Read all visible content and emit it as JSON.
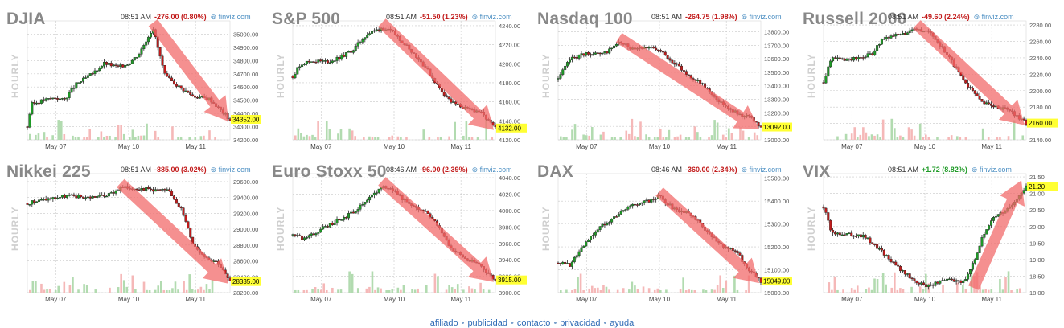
{
  "panels_text": {
    "hourly_label": "HOURLY",
    "brand": "⊚ finviz.com"
  },
  "footer": {
    "links": [
      "afiliado",
      "publicidad",
      "contacto",
      "privacidad",
      "ayuda"
    ]
  },
  "colors": {
    "up": "#1f9a27",
    "down": "#c21b1b",
    "arrow": "#f26b6b",
    "price_tag": "#ffff33",
    "grid": "#c8c8c8",
    "vol_up": "#b2dbb0",
    "vol_down": "#f5b8b8",
    "change_positive": "#1f9a27",
    "change_negative": "#c21b1b",
    "footer_link": "#2f6bb5"
  },
  "chart_data": [
    {
      "type": "candlestick",
      "title": "DJIA",
      "time": "08:51 AM",
      "change": "-276.00 (0.80%)",
      "direction": "down",
      "x_ticks": [
        "May 07",
        "May 10",
        "May 11"
      ],
      "ylim": [
        34200,
        35100
      ],
      "y_ticks": [
        34200,
        34300,
        34400,
        34500,
        34600,
        34700,
        34800,
        34900,
        35000
      ],
      "last": 34352,
      "last_label": "34352.00",
      "trend": "down",
      "path": [
        [
          0,
          34300
        ],
        [
          2,
          34470
        ],
        [
          8,
          34500
        ],
        [
          14,
          34520
        ],
        [
          18,
          34500
        ],
        [
          24,
          34620
        ],
        [
          32,
          34700
        ],
        [
          38,
          34780
        ],
        [
          45,
          34750
        ],
        [
          50,
          34780
        ],
        [
          55,
          34850
        ],
        [
          62,
          35050
        ],
        [
          64,
          34920
        ],
        [
          68,
          34680
        ],
        [
          75,
          34600
        ],
        [
          82,
          34530
        ],
        [
          90,
          34510
        ],
        [
          100,
          34352
        ]
      ]
    },
    {
      "type": "candlestick",
      "title": "S&P 500",
      "time": "08:51 AM",
      "change": "-51.50 (1.23%)",
      "direction": "down",
      "x_ticks": [
        "May 07",
        "May 10",
        "May 11"
      ],
      "ylim": [
        4120,
        4245
      ],
      "y_ticks": [
        4120,
        4140,
        4160,
        4180,
        4200,
        4220,
        4240
      ],
      "last": 4132,
      "last_label": "4132.00",
      "trend": "down",
      "path": [
        [
          0,
          4187
        ],
        [
          4,
          4200
        ],
        [
          10,
          4203
        ],
        [
          18,
          4202
        ],
        [
          24,
          4207
        ],
        [
          30,
          4215
        ],
        [
          36,
          4230
        ],
        [
          44,
          4238
        ],
        [
          50,
          4232
        ],
        [
          58,
          4215
        ],
        [
          66,
          4195
        ],
        [
          72,
          4175
        ],
        [
          78,
          4160
        ],
        [
          86,
          4152
        ],
        [
          92,
          4150
        ],
        [
          100,
          4132
        ]
      ]
    },
    {
      "type": "candlestick",
      "title": "Nasdaq 100",
      "time": "08:51 AM",
      "change": "-264.75 (1.98%)",
      "direction": "down",
      "x_ticks": [
        "May 07",
        "May 10",
        "May 11"
      ],
      "ylim": [
        13000,
        13880
      ],
      "y_ticks": [
        13000,
        13100,
        13200,
        13300,
        13400,
        13500,
        13600,
        13700,
        13800
      ],
      "last": 13092,
      "last_label": "13092.00",
      "trend": "down",
      "path": [
        [
          0,
          13450
        ],
        [
          6,
          13600
        ],
        [
          14,
          13640
        ],
        [
          22,
          13630
        ],
        [
          30,
          13720
        ],
        [
          36,
          13680
        ],
        [
          44,
          13690
        ],
        [
          52,
          13640
        ],
        [
          58,
          13560
        ],
        [
          64,
          13480
        ],
        [
          72,
          13400
        ],
        [
          80,
          13280
        ],
        [
          88,
          13200
        ],
        [
          94,
          13170
        ],
        [
          100,
          13092
        ]
      ]
    },
    {
      "type": "candlestick",
      "title": "Russell 2000",
      "time": "08:51 AM",
      "change": "-49.60 (2.24%)",
      "direction": "down",
      "x_ticks": [
        "May 07",
        "May 10",
        "May 11"
      ],
      "ylim": [
        2140,
        2285
      ],
      "y_ticks": [
        2140,
        2160,
        2180,
        2200,
        2220,
        2240,
        2260,
        2280
      ],
      "last": 2160,
      "last_label": "2160.00",
      "trend": "down",
      "path": [
        [
          0,
          2210
        ],
        [
          4,
          2240
        ],
        [
          10,
          2238
        ],
        [
          18,
          2240
        ],
        [
          24,
          2245
        ],
        [
          30,
          2265
        ],
        [
          38,
          2268
        ],
        [
          46,
          2275
        ],
        [
          54,
          2268
        ],
        [
          62,
          2240
        ],
        [
          70,
          2210
        ],
        [
          78,
          2185
        ],
        [
          86,
          2180
        ],
        [
          92,
          2176
        ],
        [
          100,
          2160
        ]
      ]
    },
    {
      "type": "candlestick",
      "title": "Nikkei 225",
      "time": "08:51 AM",
      "change": "-885.00 (3.02%)",
      "direction": "down",
      "x_ticks": [
        "May 07",
        "May 10",
        "May 11"
      ],
      "ylim": [
        28200,
        29700
      ],
      "y_ticks": [
        28200,
        28400,
        28600,
        28800,
        29000,
        29200,
        29400,
        29600
      ],
      "last": 28335,
      "last_label": "28335.00",
      "trend": "down",
      "path": [
        [
          0,
          29330
        ],
        [
          10,
          29380
        ],
        [
          20,
          29420
        ],
        [
          30,
          29400
        ],
        [
          40,
          29430
        ],
        [
          46,
          29520
        ],
        [
          54,
          29520
        ],
        [
          62,
          29500
        ],
        [
          70,
          29480
        ],
        [
          76,
          29250
        ],
        [
          82,
          28800
        ],
        [
          88,
          28650
        ],
        [
          94,
          28580
        ],
        [
          100,
          28335
        ]
      ]
    },
    {
      "type": "candlestick",
      "title": "Euro Stoxx 50",
      "time": "08:46 AM",
      "change": "-96.00 (2.39%)",
      "direction": "down",
      "x_ticks": [
        "May 07",
        "May 10",
        "May 11"
      ],
      "ylim": [
        3900,
        4045
      ],
      "y_ticks": [
        3900,
        3920,
        3940,
        3960,
        3980,
        4000,
        4020,
        4040
      ],
      "last": 3915,
      "last_label": "3915.00",
      "trend": "down",
      "path": [
        [
          0,
          3970
        ],
        [
          6,
          3965
        ],
        [
          12,
          3975
        ],
        [
          20,
          3985
        ],
        [
          28,
          3995
        ],
        [
          36,
          4010
        ],
        [
          44,
          4030
        ],
        [
          50,
          4025
        ],
        [
          58,
          4005
        ],
        [
          66,
          4000
        ],
        [
          72,
          3980
        ],
        [
          78,
          3955
        ],
        [
          86,
          3940
        ],
        [
          92,
          3935
        ],
        [
          100,
          3915
        ]
      ]
    },
    {
      "type": "candlestick",
      "title": "DAX",
      "time": "08:46 AM",
      "change": "-360.00 (2.34%)",
      "direction": "down",
      "x_ticks": [
        "May 07",
        "May 10",
        "May 11"
      ],
      "ylim": [
        15000,
        15520
      ],
      "y_ticks": [
        15000,
        15100,
        15200,
        15300,
        15400,
        15500
      ],
      "last": 15049,
      "last_label": "15049.00",
      "trend": "down",
      "path": [
        [
          0,
          15130
        ],
        [
          6,
          15120
        ],
        [
          12,
          15200
        ],
        [
          20,
          15280
        ],
        [
          28,
          15330
        ],
        [
          36,
          15380
        ],
        [
          44,
          15400
        ],
        [
          50,
          15420
        ],
        [
          58,
          15360
        ],
        [
          66,
          15340
        ],
        [
          74,
          15260
        ],
        [
          82,
          15200
        ],
        [
          88,
          15180
        ],
        [
          94,
          15100
        ],
        [
          100,
          15049
        ]
      ]
    },
    {
      "type": "candlestick",
      "title": "VIX",
      "time": "08:51 AM",
      "change": "+1.72 (8.82%)",
      "direction": "up",
      "x_ticks": [
        "May 07",
        "May 10",
        "May 11"
      ],
      "ylim": [
        18,
        21.6
      ],
      "y_ticks": [
        18.0,
        18.5,
        19.0,
        19.5,
        20.0,
        20.5,
        21.0,
        21.5
      ],
      "last": 21.2,
      "last_label": "21.20",
      "trend": "up",
      "path": [
        [
          0,
          20.6
        ],
        [
          4,
          19.8
        ],
        [
          12,
          19.8
        ],
        [
          20,
          19.7
        ],
        [
          28,
          19.3
        ],
        [
          36,
          18.8
        ],
        [
          44,
          18.4
        ],
        [
          50,
          18.2
        ],
        [
          56,
          18.3
        ],
        [
          62,
          18.4
        ],
        [
          68,
          18.3
        ],
        [
          72,
          18.6
        ],
        [
          78,
          19.6
        ],
        [
          84,
          20.3
        ],
        [
          90,
          20.5
        ],
        [
          95,
          20.8
        ],
        [
          100,
          21.2
        ]
      ]
    }
  ]
}
